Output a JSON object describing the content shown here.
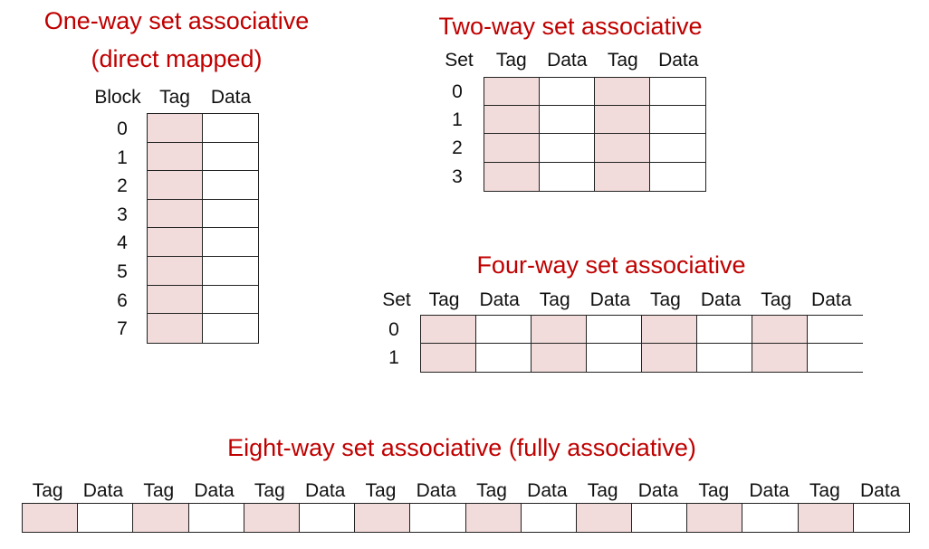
{
  "one_way": {
    "title_line1": "One-way set associative",
    "title_line2": "(direct mapped)",
    "block_header": "Block",
    "tag_header": "Tag",
    "data_header": "Data",
    "rows": [
      "0",
      "1",
      "2",
      "3",
      "4",
      "5",
      "6",
      "7"
    ]
  },
  "two_way": {
    "title": "Two-way set associative",
    "set_header": "Set",
    "col_headers": [
      "Tag",
      "Data",
      "Tag",
      "Data"
    ],
    "rows": [
      "0",
      "1",
      "2",
      "3"
    ]
  },
  "four_way": {
    "title": "Four-way set associative",
    "set_header": "Set",
    "col_headers": [
      "Tag",
      "Data",
      "Tag",
      "Data",
      "Tag",
      "Data",
      "Tag",
      "Data"
    ],
    "rows": [
      "0",
      "1"
    ]
  },
  "eight_way": {
    "title": "Eight-way set associative (fully associative)",
    "col_headers": [
      "Tag",
      "Data",
      "Tag",
      "Data",
      "Tag",
      "Data",
      "Tag",
      "Data",
      "Tag",
      "Data",
      "Tag",
      "Data",
      "Tag",
      "Data",
      "Tag",
      "Data"
    ]
  },
  "colors": {
    "title": "#c00000",
    "tag_fill": "#f2dcdb",
    "data_fill": "#ffffff",
    "line": "#222222"
  }
}
